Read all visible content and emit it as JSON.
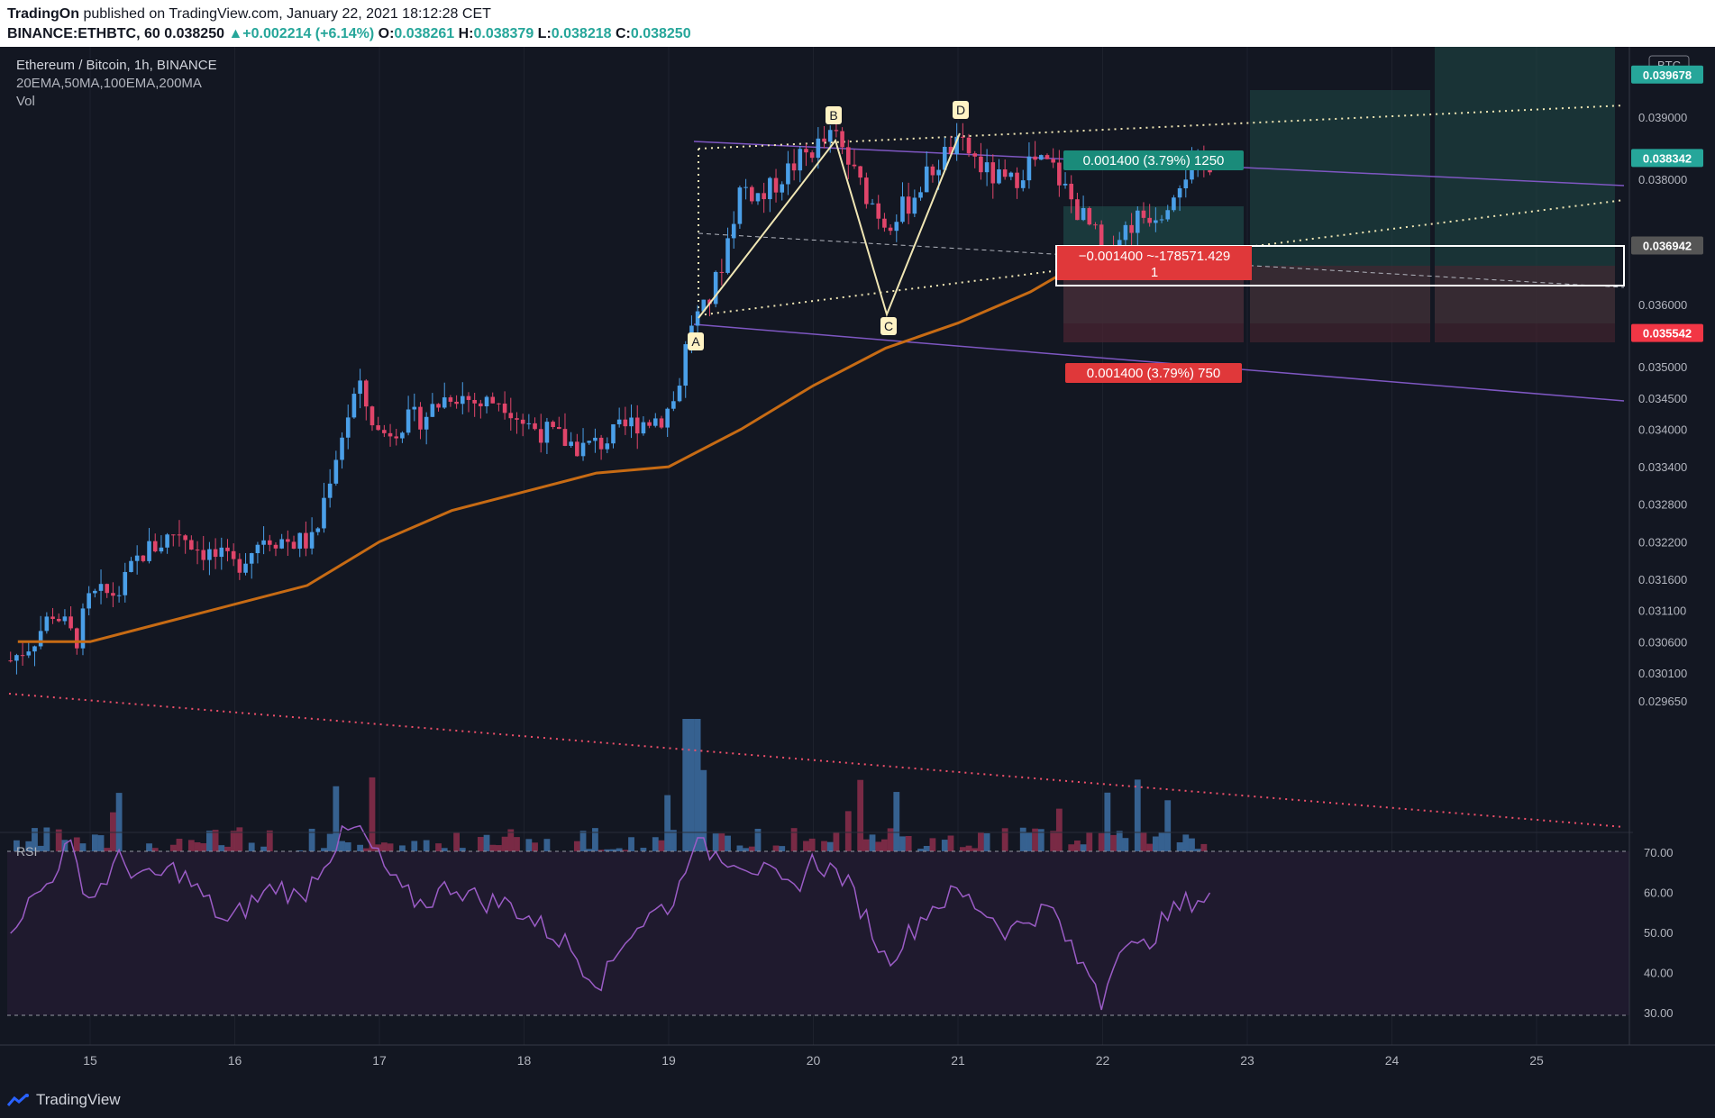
{
  "header": {
    "author": "TradingOn",
    "published": "published on TradingView.com, January 22, 2021 18:12:28 CET",
    "symbol_line": "BINANCE:ETHBTC, 60",
    "last": "0.038250",
    "change": "+0.002214 (+6.14%)",
    "o_label": "O:",
    "o_value": "0.038261",
    "h_label": "H:",
    "h_value": "0.038379",
    "l_label": "L:",
    "l_value": "0.038218",
    "c_label": "C:",
    "c_value": "0.038250"
  },
  "legend": {
    "title": "Ethereum / Bitcoin, 1h, BINANCE",
    "indicators": "20EMA,50MA,100EMA,200MA",
    "volume": "Vol",
    "rsi": "RSI"
  },
  "currency_badge": "BTC",
  "price_badges": [
    {
      "value": "0.039678",
      "color": "#26a69a"
    },
    {
      "value": "0.038342",
      "color": "#26a69a"
    },
    {
      "value": "0.036942",
      "color": "#555555"
    },
    {
      "value": "0.035542",
      "color": "#f23645"
    }
  ],
  "trade_box": {
    "target": "0.001400 (3.79%) 1250",
    "stop": "0.001400 (3.79%) 750",
    "entry_line1": "−0.001400 ~-178571.429",
    "entry_line2": "1"
  },
  "pattern_labels": [
    "A",
    "B",
    "C",
    "D"
  ],
  "branding": "TradingView",
  "chart_data": {
    "type": "candlestick",
    "title": "Ethereum / Bitcoin, 1h, BINANCE",
    "x_ticks": [
      "15",
      "16",
      "17",
      "18",
      "19",
      "20",
      "21",
      "22",
      "23",
      "24",
      "25"
    ],
    "y_ticks": [
      "0.039000",
      "0.038000",
      "0.036000",
      "0.035000",
      "0.034500",
      "0.034000",
      "0.033400",
      "0.032800",
      "0.032200",
      "0.031600",
      "0.031100",
      "0.030600",
      "0.030100",
      "0.029650"
    ],
    "rsi_ticks": [
      "70.00",
      "60.00",
      "50.00",
      "40.00",
      "30.00"
    ],
    "close_path": [
      [
        14.45,
        0.0303
      ],
      [
        14.6,
        0.0306
      ],
      [
        14.75,
        0.0311
      ],
      [
        14.9,
        0.0306
      ],
      [
        15.0,
        0.0313
      ],
      [
        15.2,
        0.0314
      ],
      [
        15.35,
        0.032
      ],
      [
        15.5,
        0.0322
      ],
      [
        15.6,
        0.0324
      ],
      [
        15.75,
        0.0321
      ],
      [
        16.0,
        0.0318
      ],
      [
        16.2,
        0.0323
      ],
      [
        16.4,
        0.0322
      ],
      [
        16.55,
        0.0322
      ],
      [
        16.65,
        0.0332
      ],
      [
        16.75,
        0.034
      ],
      [
        16.85,
        0.0347
      ],
      [
        17.0,
        0.0339
      ],
      [
        17.15,
        0.0341
      ],
      [
        17.3,
        0.0342
      ],
      [
        17.5,
        0.0346
      ],
      [
        17.7,
        0.0344
      ],
      [
        17.85,
        0.0345
      ],
      [
        18.0,
        0.0341
      ],
      [
        18.2,
        0.0339
      ],
      [
        18.4,
        0.0337
      ],
      [
        18.55,
        0.0338
      ],
      [
        18.75,
        0.0341
      ],
      [
        18.95,
        0.0342
      ],
      [
        19.05,
        0.0345
      ],
      [
        19.15,
        0.0357
      ],
      [
        19.25,
        0.0359
      ],
      [
        19.35,
        0.0365
      ],
      [
        19.5,
        0.0379
      ],
      [
        19.65,
        0.0377
      ],
      [
        19.8,
        0.0381
      ],
      [
        20.0,
        0.0385
      ],
      [
        20.15,
        0.0387
      ],
      [
        20.3,
        0.038
      ],
      [
        20.5,
        0.0373
      ],
      [
        20.65,
        0.0376
      ],
      [
        20.8,
        0.0381
      ],
      [
        20.95,
        0.0385
      ],
      [
        21.05,
        0.0385
      ],
      [
        21.2,
        0.0381
      ],
      [
        21.35,
        0.0379
      ],
      [
        21.5,
        0.0383
      ],
      [
        21.65,
        0.0382
      ],
      [
        21.8,
        0.0376
      ],
      [
        21.95,
        0.0371
      ],
      [
        22.0,
        0.0365
      ],
      [
        22.1,
        0.0371
      ],
      [
        22.25,
        0.0374
      ],
      [
        22.4,
        0.0375
      ],
      [
        22.55,
        0.0381
      ],
      [
        22.7,
        0.0382
      ],
      [
        22.75,
        0.0383
      ]
    ],
    "ma_path": [
      [
        14.5,
        0.0306
      ],
      [
        15.0,
        0.0306
      ],
      [
        15.5,
        0.0309
      ],
      [
        16.0,
        0.0312
      ],
      [
        16.5,
        0.0315
      ],
      [
        17.0,
        0.0322
      ],
      [
        17.5,
        0.0327
      ],
      [
        18.0,
        0.033
      ],
      [
        18.5,
        0.0333
      ],
      [
        19.0,
        0.0334
      ],
      [
        19.5,
        0.034
      ],
      [
        20.0,
        0.0347
      ],
      [
        20.5,
        0.0353
      ],
      [
        21.0,
        0.0357
      ],
      [
        21.5,
        0.0362
      ],
      [
        21.8,
        0.0366
      ]
    ],
    "series": [
      {
        "name": "20EMA"
      },
      {
        "name": "50MA"
      },
      {
        "name": "100EMA"
      },
      {
        "name": "200MA"
      }
    ],
    "rsi_path": [
      [
        14.45,
        52
      ],
      [
        14.7,
        62
      ],
      [
        14.85,
        72
      ],
      [
        15.0,
        58
      ],
      [
        15.2,
        68
      ],
      [
        15.4,
        63
      ],
      [
        15.6,
        66
      ],
      [
        15.75,
        60
      ],
      [
        15.95,
        52
      ],
      [
        16.1,
        57
      ],
      [
        16.3,
        62
      ],
      [
        16.45,
        58
      ],
      [
        16.6,
        67
      ],
      [
        16.75,
        74
      ],
      [
        16.85,
        76
      ],
      [
        17.0,
        68
      ],
      [
        17.15,
        60
      ],
      [
        17.3,
        57
      ],
      [
        17.5,
        62
      ],
      [
        17.7,
        58
      ],
      [
        17.9,
        57
      ],
      [
        18.1,
        52
      ],
      [
        18.3,
        47
      ],
      [
        18.45,
        40
      ],
      [
        18.55,
        38
      ],
      [
        18.7,
        49
      ],
      [
        18.9,
        55
      ],
      [
        19.05,
        58
      ],
      [
        19.15,
        72
      ],
      [
        19.3,
        70
      ],
      [
        19.5,
        68
      ],
      [
        19.7,
        64
      ],
      [
        19.85,
        60
      ],
      [
        20.0,
        68
      ],
      [
        20.2,
        64
      ],
      [
        20.35,
        55
      ],
      [
        20.5,
        43
      ],
      [
        20.65,
        49
      ],
      [
        20.8,
        56
      ],
      [
        21.0,
        60
      ],
      [
        21.2,
        55
      ],
      [
        21.35,
        50
      ],
      [
        21.5,
        54
      ],
      [
        21.65,
        56
      ],
      [
        21.8,
        44
      ],
      [
        21.95,
        38
      ],
      [
        22.0,
        32
      ],
      [
        22.1,
        48
      ],
      [
        22.25,
        45
      ],
      [
        22.45,
        54
      ],
      [
        22.6,
        58
      ],
      [
        22.75,
        59
      ]
    ]
  }
}
